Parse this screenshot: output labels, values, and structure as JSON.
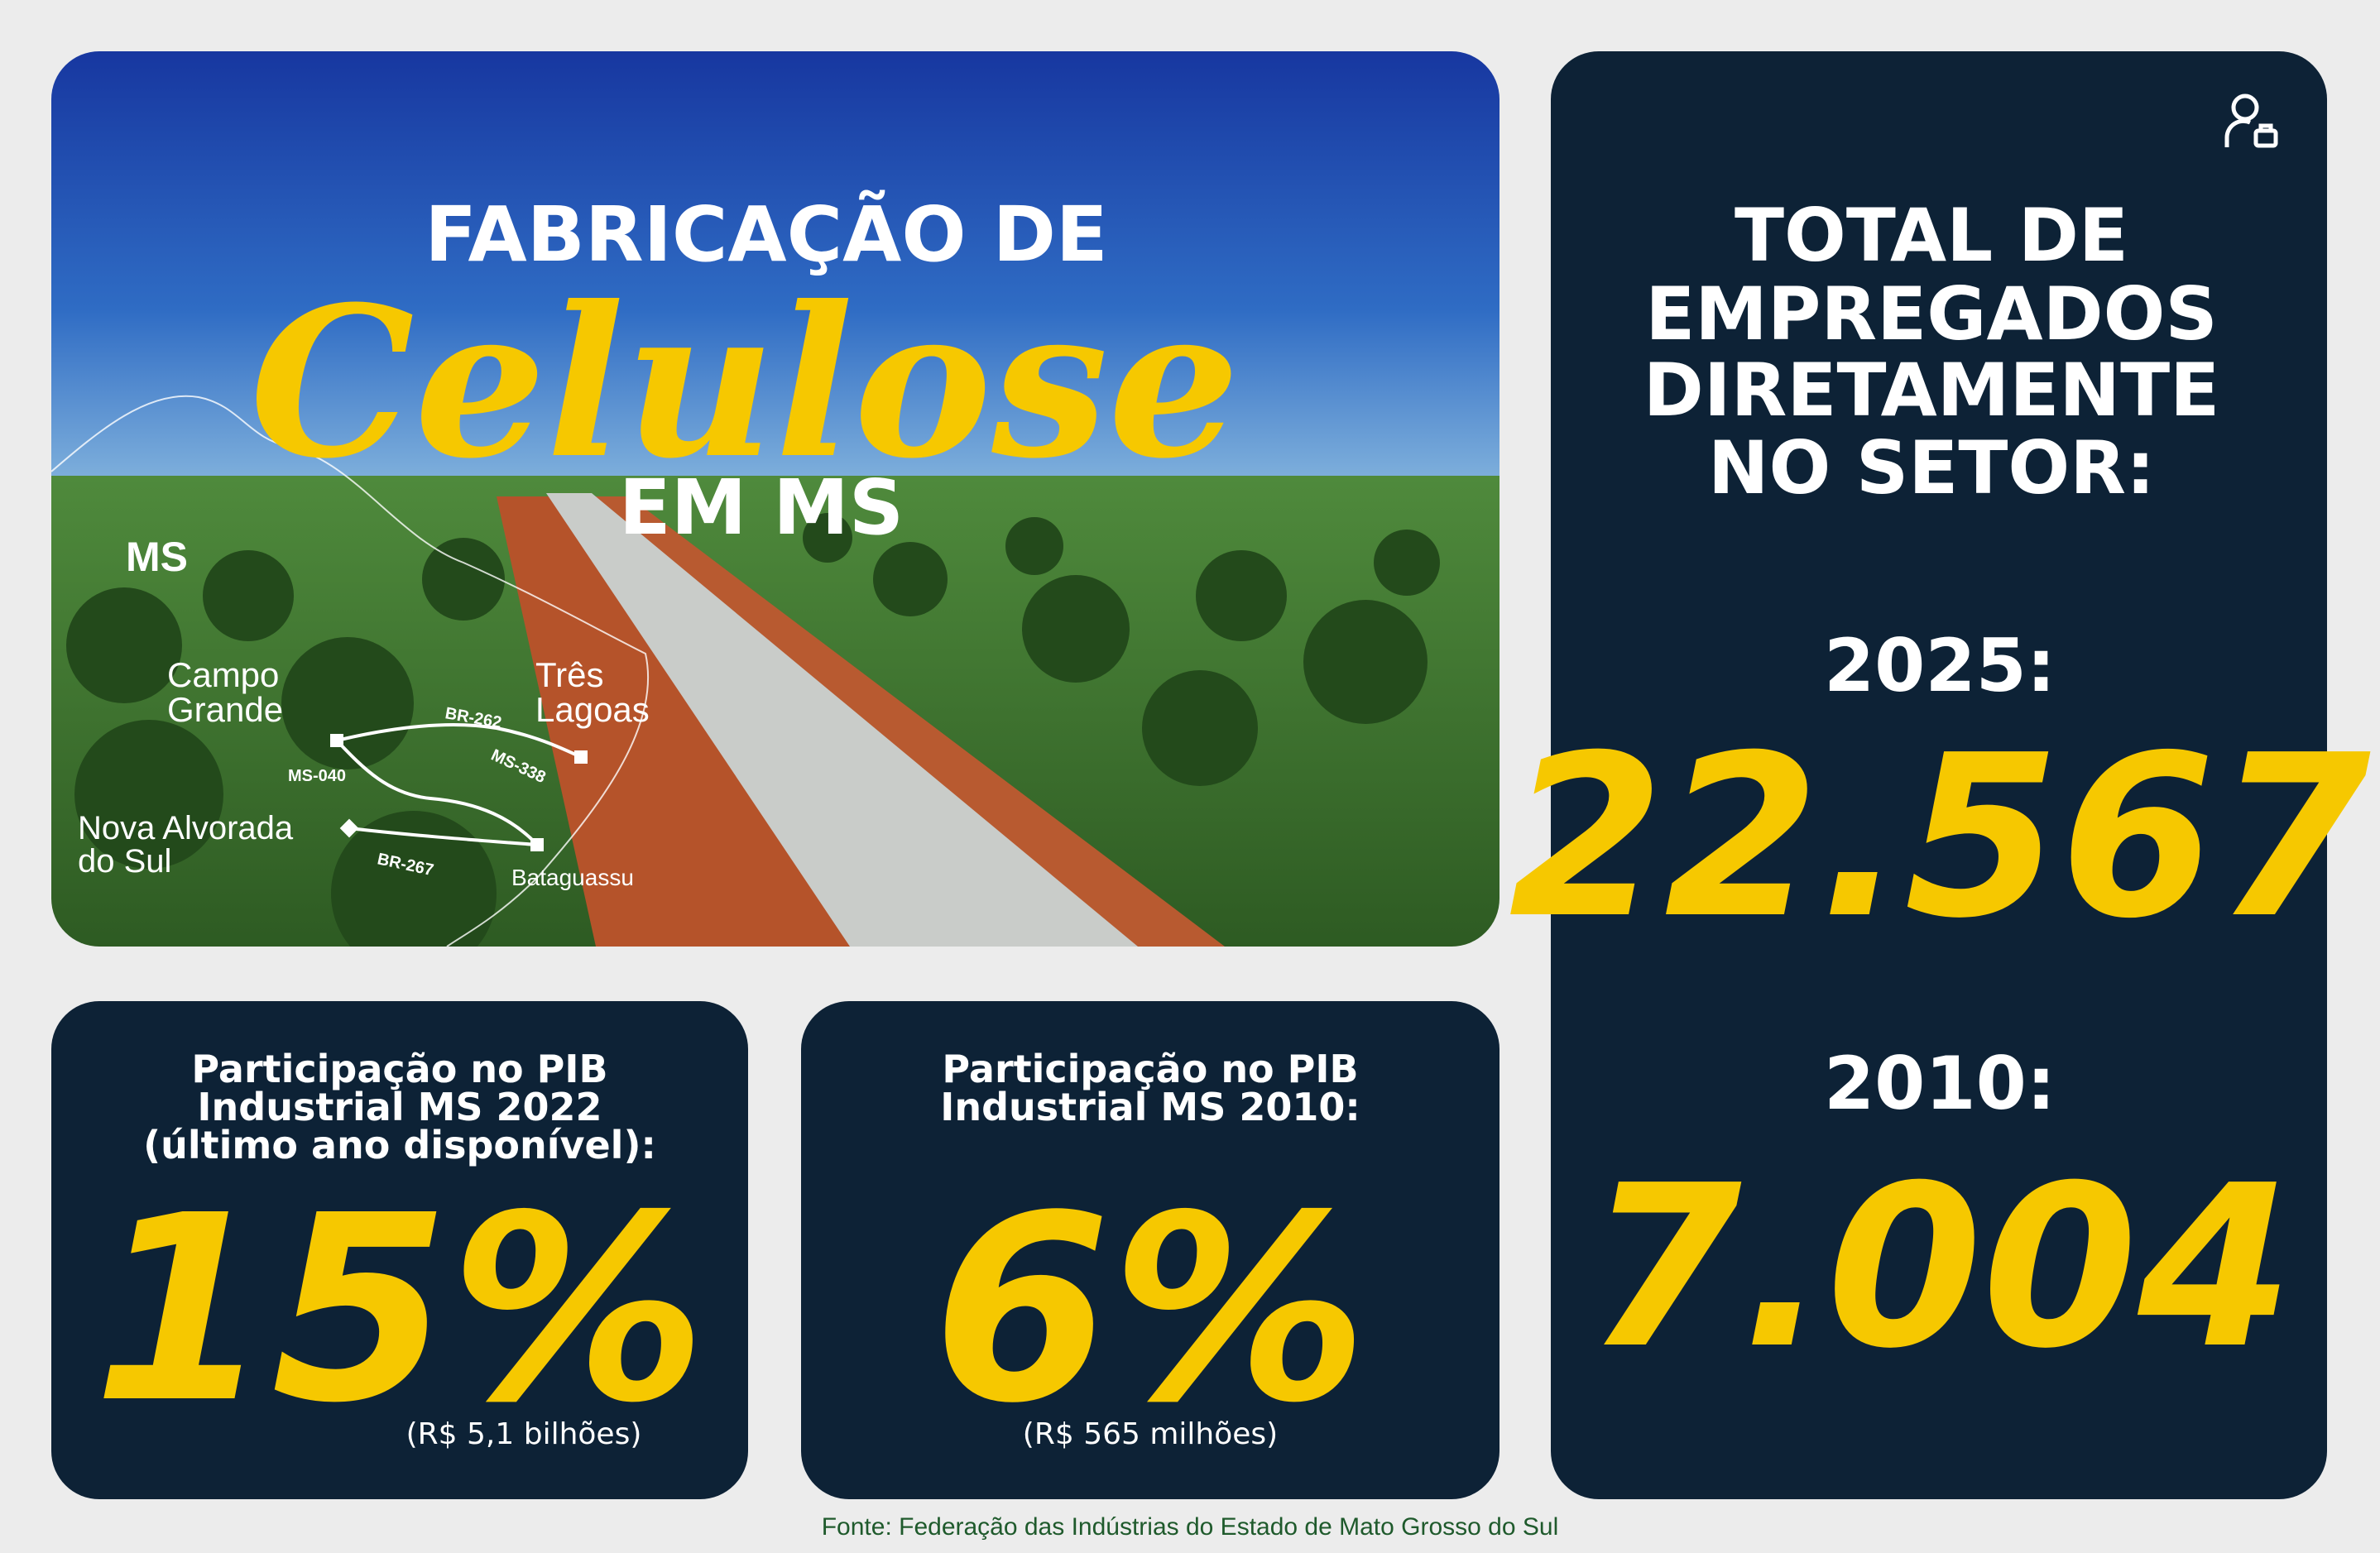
{
  "hero": {
    "title_top": "FABRICAÇÃO DE",
    "title_script": "Celulose",
    "title_bottom": "EM MS",
    "map": {
      "region": "MS",
      "cities": [
        [
          "Campo",
          "Grande"
        ],
        [
          "Três",
          "Lagoas"
        ],
        [
          "Nova Alvorada",
          "do Sul"
        ],
        [
          "Bataguassu"
        ]
      ],
      "roads": [
        "BR-262",
        "MS-338",
        "MS-040",
        "BR-267"
      ]
    }
  },
  "employees": {
    "heading": [
      "TOTAL DE",
      "EMPREGADOS",
      "DIRETAMENTE",
      "NO SETOR:"
    ],
    "entries": [
      {
        "year": "2025:",
        "value": "22.567"
      },
      {
        "year": "2010:",
        "value": "7.004"
      }
    ]
  },
  "gdp": [
    {
      "heading": [
        "Participação no PIB",
        "Industrial MS 2022",
        "(último ano disponível):"
      ],
      "value": "15%",
      "note": "(R$ 5,1 bilhões)"
    },
    {
      "heading": [
        "Participação no PIB",
        "Industrial MS 2010:"
      ],
      "value": "6%",
      "note": "(R$ 565 milhões)"
    }
  ],
  "footer": "Fonte: Federação das Indústrias do Estado de Mato Grosso do Sul"
}
